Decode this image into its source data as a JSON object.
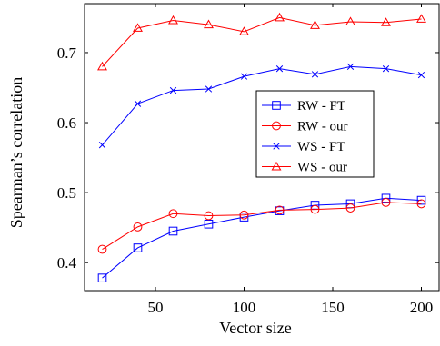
{
  "chart_data": {
    "type": "line",
    "title": "",
    "xlabel": "Vector size",
    "ylabel": "Spearman’s correlation",
    "xlim": [
      10,
      210
    ],
    "ylim": [
      0.36,
      0.77
    ],
    "grid": false,
    "legend_position": "right-center",
    "x_ticks": [
      50,
      100,
      150,
      200
    ],
    "x_tick_labels": [
      "50",
      "100",
      "150",
      "200"
    ],
    "y_ticks": [
      0.4,
      0.5,
      0.6,
      0.7
    ],
    "y_tick_labels": [
      "0.4",
      "0.5",
      "0.6",
      "0.7"
    ],
    "x": [
      20,
      40,
      60,
      80,
      100,
      120,
      140,
      160,
      180,
      200
    ],
    "series": [
      {
        "name": "RW - FT",
        "color": "#0000ff",
        "marker": "square",
        "values": [
          0.378,
          0.421,
          0.445,
          0.455,
          0.465,
          0.474,
          0.482,
          0.484,
          0.492,
          0.489
        ]
      },
      {
        "name": "RW - our",
        "color": "#ff0000",
        "marker": "circle",
        "values": [
          0.419,
          0.451,
          0.47,
          0.467,
          0.468,
          0.475,
          0.476,
          0.478,
          0.486,
          0.484
        ]
      },
      {
        "name": "WS - FT",
        "color": "#0000ff",
        "marker": "cross",
        "values": [
          0.568,
          0.627,
          0.646,
          0.648,
          0.666,
          0.677,
          0.669,
          0.68,
          0.677,
          0.668
        ]
      },
      {
        "name": "WS - our",
        "color": "#ff0000",
        "marker": "triangle",
        "values": [
          0.68,
          0.735,
          0.746,
          0.74,
          0.73,
          0.75,
          0.739,
          0.744,
          0.743,
          0.748
        ]
      }
    ]
  }
}
